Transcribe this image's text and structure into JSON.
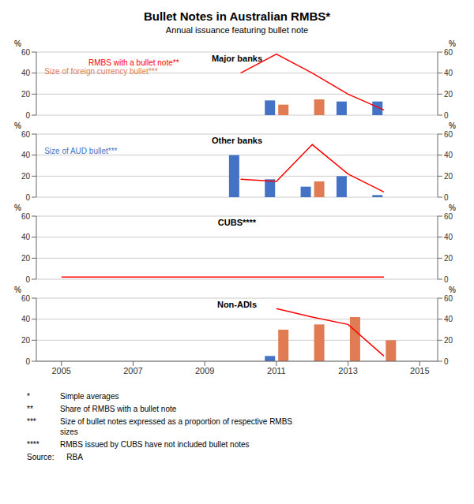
{
  "title": "Bullet Notes in Australian RMBS*",
  "subtitle": "Annual issuance featuring bullet note",
  "annotations": [
    {
      "label": "*",
      "text": "Simple averages"
    },
    {
      "label": "**",
      "text": "Share of RMBS with a bullet note"
    },
    {
      "label": "***",
      "text": "Size of bullet notes expressed as a proportion of respective RMBS\nsizes"
    },
    {
      "label": "****",
      "text": "RMBS issued by CUBS have not included bullet notes"
    },
    {
      "label": "Source:",
      "text": "   RBA"
    }
  ],
  "chart_data": [
    {
      "type": "bar",
      "title": "Major banks",
      "x": [
        2005,
        2006,
        2007,
        2008,
        2009,
        2010,
        2011,
        2012,
        2013,
        2014
      ],
      "xlim": [
        2004.3,
        2015.5
      ],
      "xticks": [
        2005,
        2007,
        2009,
        2011,
        2013,
        2015
      ],
      "ylim": [
        0,
        60
      ],
      "yticks": [
        0,
        20,
        40,
        60
      ],
      "y2lim": [
        0,
        60
      ],
      "y2ticks": [
        0,
        20,
        40,
        60
      ],
      "ylabel": "%",
      "y2label": "%",
      "grid": true,
      "tick_labels": "y",
      "annotations": [
        {
          "text": "RMBS with a bullet note**",
          "color": "#FF0000"
        },
        {
          "text": "Size of foreign currency bullet***",
          "color": "#E07B54"
        }
      ],
      "series": [
        {
          "type": "bar",
          "color": "#4472C4",
          "values": [
            0,
            0,
            0,
            0,
            0,
            0,
            14,
            0,
            13,
            13
          ]
        },
        {
          "type": "bar",
          "color": "#E07B54",
          "values": [
            0,
            0,
            0,
            0,
            0,
            0,
            10,
            15,
            0,
            0
          ]
        },
        {
          "type": "line",
          "axis": "y2",
          "color": "#FF0000",
          "x": [
            2010,
            2011,
            2012,
            2013,
            2014
          ],
          "values": [
            40,
            58,
            40,
            20,
            5
          ]
        }
      ]
    },
    {
      "type": "bar",
      "title": "Other banks",
      "x": [
        2005,
        2006,
        2007,
        2008,
        2009,
        2010,
        2011,
        2012,
        2013,
        2014
      ],
      "xlim": [
        2004.3,
        2015.5
      ],
      "xticks": [
        2005,
        2007,
        2009,
        2011,
        2013,
        2015
      ],
      "ylim": [
        0,
        60
      ],
      "yticks": [
        0,
        20,
        40,
        60
      ],
      "y2lim": [
        0,
        60
      ],
      "y2ticks": [
        0,
        20,
        40,
        60
      ],
      "ylabel": "%",
      "y2label": "%",
      "grid": true,
      "tick_labels": "y",
      "annotations": [
        {
          "text": "Size of AUD bullet***",
          "color": "#4472C4"
        }
      ],
      "series": [
        {
          "type": "bar",
          "color": "#4472C4",
          "values": [
            0,
            0,
            0,
            0,
            0,
            40,
            17,
            10,
            20,
            2
          ]
        },
        {
          "type": "bar",
          "color": "#E07B54",
          "values": [
            0,
            0,
            0,
            0,
            0,
            0,
            0,
            15,
            0,
            0
          ]
        },
        {
          "type": "line",
          "axis": "y2",
          "color": "#FF0000",
          "x": [
            2010,
            2011,
            2012,
            2013,
            2014
          ],
          "values": [
            17,
            15,
            50,
            22,
            5
          ]
        }
      ]
    },
    {
      "type": "bar",
      "title": "CUBS****",
      "x": [
        2005,
        2006,
        2007,
        2008,
        2009,
        2010,
        2011,
        2012,
        2013,
        2014
      ],
      "xlim": [
        2004.3,
        2015.5
      ],
      "xticks": [
        2005,
        2007,
        2009,
        2011,
        2013,
        2015
      ],
      "ylim": [
        0,
        60
      ],
      "yticks": [
        0,
        20,
        40,
        60
      ],
      "y2lim": [
        0,
        60
      ],
      "y2ticks": [
        0,
        20,
        40,
        60
      ],
      "ylabel": "%",
      "y2label": "%",
      "grid": true,
      "tick_labels": "y",
      "series": [
        {
          "type": "bar",
          "color": "#4472C4",
          "values": [
            0,
            0,
            0,
            0,
            0,
            0,
            0,
            0,
            0,
            0
          ]
        },
        {
          "type": "bar",
          "color": "#E07B54",
          "values": [
            0,
            0,
            0,
            0,
            0,
            0,
            0,
            0,
            0,
            0
          ]
        },
        {
          "type": "line",
          "axis": "y2",
          "color": "#FF0000",
          "x": [
            2005,
            2014
          ],
          "values": [
            2,
            2
          ]
        }
      ]
    },
    {
      "type": "bar",
      "title": "Non-ADIs",
      "x": [
        2005,
        2006,
        2007,
        2008,
        2009,
        2010,
        2011,
        2012,
        2013,
        2014
      ],
      "xlim": [
        2004.3,
        2015.5
      ],
      "xticks": [
        2005,
        2007,
        2009,
        2011,
        2013,
        2015
      ],
      "ylim": [
        0,
        60
      ],
      "yticks": [
        0,
        20,
        40,
        60
      ],
      "y2lim": [
        0,
        60
      ],
      "y2ticks": [
        0,
        20,
        40,
        60
      ],
      "ylabel": "%",
      "y2label": "%",
      "grid": true,
      "series": [
        {
          "type": "bar",
          "color": "#4472C4",
          "values": [
            0,
            0,
            0,
            0,
            0,
            0,
            5,
            0,
            0,
            0
          ]
        },
        {
          "type": "bar",
          "color": "#E07B54",
          "values": [
            0,
            0,
            0,
            0,
            0,
            0,
            30,
            35,
            42,
            20
          ]
        },
        {
          "type": "line",
          "axis": "y2",
          "color": "#FF0000",
          "x": [
            2011,
            2012,
            2013,
            2014
          ],
          "values": [
            50,
            42,
            35,
            5
          ]
        }
      ]
    }
  ]
}
